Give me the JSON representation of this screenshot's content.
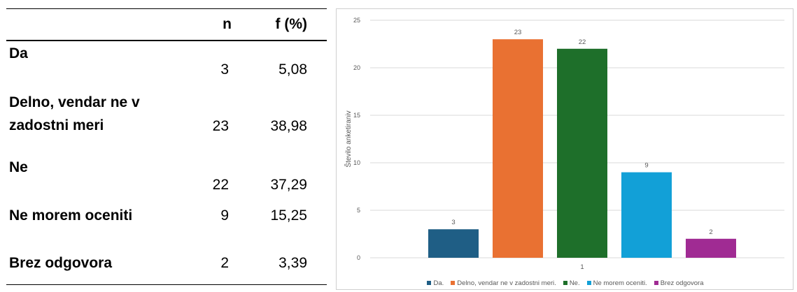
{
  "table": {
    "headers": {
      "label": "",
      "n": "n",
      "f": "f (%)"
    },
    "rows": [
      {
        "label_lines": [
          "Da"
        ],
        "n": "3",
        "f": "5,08"
      },
      {
        "label_lines": [
          "Delno, vendar ne v",
          "zadostni meri"
        ],
        "n": "23",
        "f": "38,98"
      },
      {
        "label_lines": [
          "Ne"
        ],
        "n": "22",
        "f": "37,29"
      },
      {
        "label_lines": [
          "Ne morem oceniti"
        ],
        "n": "9",
        "f": "15,25"
      },
      {
        "label_lines": [
          "Brez odgovora"
        ],
        "n": "2",
        "f": "3,39"
      }
    ]
  },
  "chart_data": {
    "type": "bar",
    "categories": [
      "1"
    ],
    "series": [
      {
        "name": "Da.",
        "values": [
          3
        ],
        "color": "#1f5e85"
      },
      {
        "name": "Delno, vendar ne v zadostni meri.",
        "values": [
          23
        ],
        "color": "#e97132"
      },
      {
        "name": "Ne.",
        "values": [
          22
        ],
        "color": "#1e6f2a"
      },
      {
        "name": "Ne morem oceniti.",
        "values": [
          9
        ],
        "color": "#12a0d7"
      },
      {
        "name": "Brez odgovora",
        "values": [
          2
        ],
        "color": "#a02b93"
      }
    ],
    "data_labels": [
      "3",
      "23",
      "22",
      "9",
      "2"
    ],
    "title": "",
    "xlabel": "",
    "ylabel": "Število anketiraniv",
    "ylim": [
      0,
      25
    ],
    "yticks": [
      "0",
      "5",
      "10",
      "15",
      "20",
      "25"
    ],
    "grid": true,
    "legend_position": "bottom"
  }
}
